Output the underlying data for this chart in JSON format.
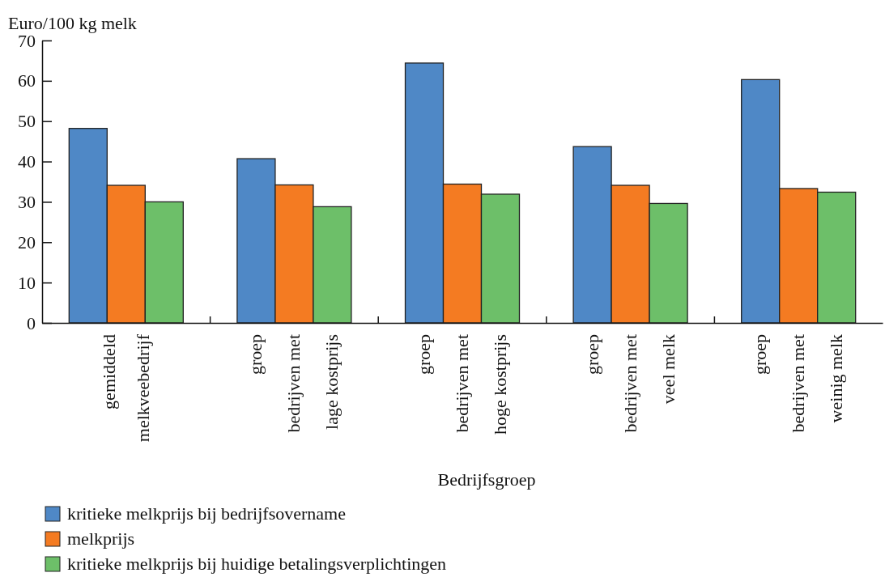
{
  "chart_data": {
    "type": "bar",
    "ylabel": "Euro/100 kg melk",
    "xlabel": "Bedrijfsgroep",
    "categories": [
      "gemiddeld\nmelkveebedrijf",
      "groep\nbedrijven met\nlage kostprijs",
      "groep\nbedrijven met\nhoge kostprijs",
      "groep\nbedrijven met\nveel melk",
      "groep\nbedrijven met\nweinig melk"
    ],
    "series": [
      {
        "name": "kritieke melkprijs bij bedrijfsovername",
        "color": "#4f88c6",
        "values": [
          48.2,
          40.7,
          64.4,
          43.7,
          60.3
        ]
      },
      {
        "name": "melkprijs",
        "color": "#f47b22",
        "values": [
          34.1,
          34.2,
          34.4,
          34.1,
          33.3
        ]
      },
      {
        "name": "kritieke melkprijs bij huidige betalingsverplichtingen",
        "color": "#6dbf69",
        "values": [
          30.0,
          28.8,
          31.9,
          29.6,
          32.4
        ]
      }
    ],
    "ylim": [
      0,
      70
    ],
    "yticks": [
      0,
      10,
      20,
      30,
      40,
      50,
      60,
      70
    ],
    "legend": "bottom"
  }
}
